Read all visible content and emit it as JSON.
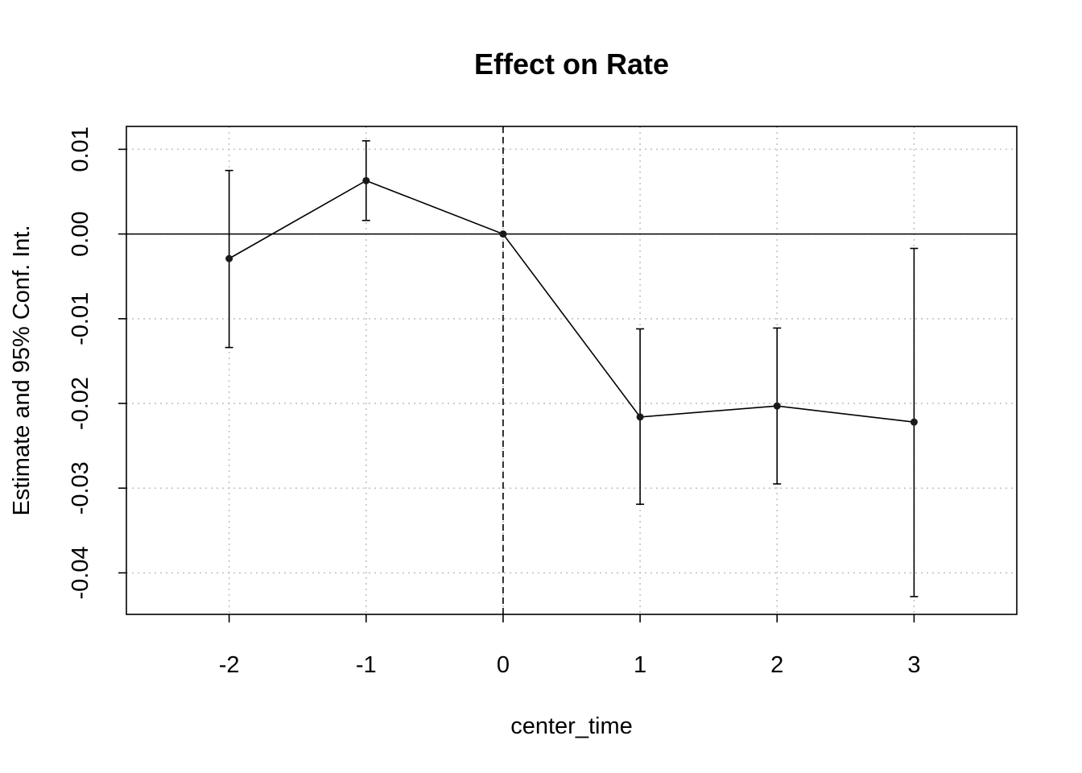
{
  "chart_data": {
    "type": "line",
    "title": "Effect on Rate",
    "xlabel": "center_time",
    "ylabel": "Estimate and 95% Conf. Int.",
    "xlim": [
      -2.75,
      3.75
    ],
    "ylim": [
      -0.0449,
      0.0127
    ],
    "x_ticks": [
      -2,
      -1,
      0,
      1,
      2,
      3
    ],
    "y_ticks": [
      0.01,
      0.0,
      -0.01,
      -0.02,
      -0.03,
      -0.04
    ],
    "x_tick_labels": [
      "-2",
      "-1",
      "0",
      "1",
      "2",
      "3"
    ],
    "y_tick_labels": [
      "0.01",
      "0.00",
      "-0.01",
      "-0.02",
      "-0.03",
      "-0.04"
    ],
    "grid": true,
    "reference_lines": {
      "horizontal_y": 0,
      "vertical_x": 0
    },
    "series": [
      {
        "x": [
          -2,
          -1,
          0,
          1,
          2,
          3
        ],
        "estimate": [
          -0.0029,
          0.0063,
          0.0,
          -0.0216,
          -0.0203,
          -0.0222
        ],
        "ci_lower": [
          -0.0134,
          0.0016,
          0.0,
          -0.0319,
          -0.0295,
          -0.0428
        ],
        "ci_upper": [
          0.0075,
          0.011,
          0.0,
          -0.0112,
          -0.0111,
          -0.0017
        ]
      }
    ],
    "colors": {
      "line": "#000000",
      "grid": "#bebebe",
      "point": "#1a1a1a"
    }
  }
}
